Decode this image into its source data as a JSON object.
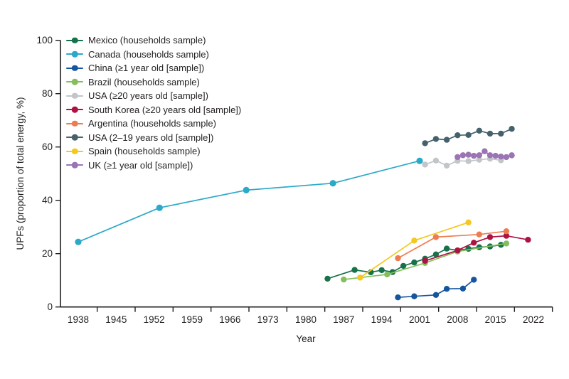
{
  "figure": {
    "background": "#ffffff",
    "text_color": "#231f20",
    "axis_color": "#231f20"
  },
  "chart_data": {
    "type": "line",
    "title": "",
    "xlabel": "Year",
    "ylabel": "UPFs (proportion of total energy, %)",
    "x_ticks": [
      1938,
      1945,
      1952,
      1959,
      1966,
      1973,
      1980,
      1987,
      1994,
      2001,
      2008,
      2015,
      2022
    ],
    "y_ticks": [
      0,
      20,
      40,
      60,
      80,
      100
    ],
    "xlim": [
      1934.7,
      2025.5
    ],
    "ylim": [
      0,
      100
    ],
    "grid": false,
    "legend_position": "top-left",
    "series": [
      {
        "name": "Mexico (households sample)",
        "color": "#17714a",
        "points": [
          [
            1984,
            10.6
          ],
          [
            1989,
            13.9
          ],
          [
            1992,
            13.0
          ],
          [
            1994,
            13.8
          ],
          [
            1996,
            13.1
          ],
          [
            1998,
            15.4
          ],
          [
            2000,
            16.7
          ],
          [
            2002,
            18.1
          ],
          [
            2004,
            19.7
          ],
          [
            2006,
            21.9
          ],
          [
            2008,
            21.2
          ],
          [
            2010,
            21.8
          ],
          [
            2012,
            22.4
          ],
          [
            2014,
            22.7
          ],
          [
            2016,
            23.3
          ]
        ]
      },
      {
        "name": "Canada (households sample)",
        "color": "#2ba9c9",
        "points": [
          [
            1938,
            24.4
          ],
          [
            1953,
            37.2
          ],
          [
            1969,
            43.8
          ],
          [
            1985,
            46.4
          ],
          [
            2001,
            54.8
          ]
        ]
      },
      {
        "name": "China (≥1 year old [sample])",
        "color": "#15559f",
        "points": [
          [
            1997,
            3.6
          ],
          [
            2000,
            4.0
          ],
          [
            2004,
            4.5
          ],
          [
            2006,
            6.8
          ],
          [
            2009,
            6.9
          ],
          [
            2011,
            10.2
          ]
        ]
      },
      {
        "name": "Brazil (households sample)",
        "color": "#85bf5d",
        "points": [
          [
            1987,
            10.3
          ],
          [
            1995,
            12.2
          ],
          [
            2002,
            16.5
          ],
          [
            2008,
            20.8
          ],
          [
            2017,
            23.8
          ]
        ]
      },
      {
        "name": "USA (≥20 years old [sample])",
        "color": "#c2c6c8",
        "points": [
          [
            2002,
            53.4
          ],
          [
            2004,
            54.9
          ],
          [
            2006,
            53.0
          ],
          [
            2008,
            54.8
          ],
          [
            2010,
            54.7
          ],
          [
            2012,
            55.2
          ],
          [
            2014,
            55.6
          ],
          [
            2016,
            55.0
          ],
          [
            2018,
            56.8
          ]
        ]
      },
      {
        "name": "South Korea (≥20 years old [sample])",
        "color": "#ad1243",
        "points": [
          [
            2002,
            17.3
          ],
          [
            2008,
            21.2
          ],
          [
            2011,
            24.1
          ],
          [
            2014,
            26.2
          ],
          [
            2017,
            26.7
          ],
          [
            2021,
            25.2
          ]
        ]
      },
      {
        "name": "Argentina (households sample)",
        "color": "#ee7c51",
        "points": [
          [
            1997,
            18.3
          ],
          [
            2004,
            26.2
          ],
          [
            2012,
            27.2
          ],
          [
            2017,
            28.4
          ]
        ]
      },
      {
        "name": "USA (2–19 years old [sample])",
        "color": "#45616b",
        "points": [
          [
            2002,
            61.4
          ],
          [
            2004,
            63.0
          ],
          [
            2006,
            62.7
          ],
          [
            2008,
            64.4
          ],
          [
            2010,
            64.5
          ],
          [
            2012,
            66.1
          ],
          [
            2014,
            65.0
          ],
          [
            2016,
            65.0
          ],
          [
            2018,
            66.8
          ]
        ]
      },
      {
        "name": "Spain (households sample)",
        "color": "#f4c81d",
        "points": [
          [
            1990,
            11.0
          ],
          [
            2000,
            24.9
          ],
          [
            2010,
            31.7
          ]
        ]
      },
      {
        "name": "UK (≥1 year old [sample])",
        "color": "#9a74b5",
        "points": [
          [
            2008,
            56.2
          ],
          [
            2009,
            56.9
          ],
          [
            2010,
            57.1
          ],
          [
            2011,
            56.7
          ],
          [
            2012,
            56.9
          ],
          [
            2013,
            58.4
          ],
          [
            2014,
            56.9
          ],
          [
            2015,
            56.7
          ],
          [
            2016,
            56.4
          ],
          [
            2017,
            56.2
          ],
          [
            2018,
            56.9
          ]
        ]
      }
    ]
  }
}
